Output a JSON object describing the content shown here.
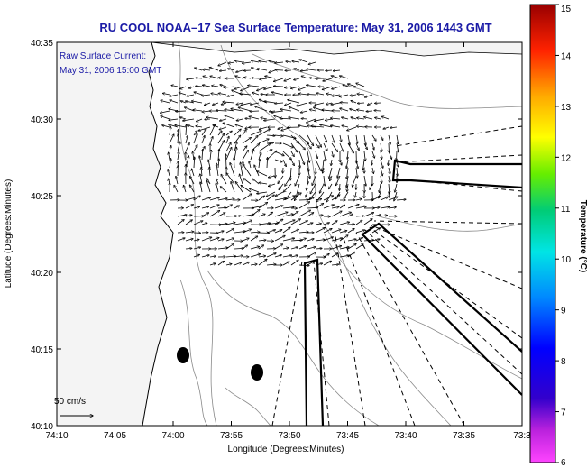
{
  "title": "RU COOL  NOAA–17  Sea Surface Temperature:  May 31, 2006 1443 GMT",
  "annotation_line1": "Raw Surface Current:",
  "annotation_line2": "May 31, 2006 15:00 GMT",
  "scale_label": "50 cm/s",
  "map": {
    "xlabel": "Longitude (Degrees:Minutes)",
    "ylabel": "Latitude (Degrees:Minutes)",
    "x_ticks": [
      "74:10",
      "74:05",
      "74:00",
      "73:55",
      "73:50",
      "73:45",
      "73:40",
      "73:35",
      "73:3"
    ],
    "y_ticks": [
      "40:35",
      "40:30",
      "40:25",
      "40:20",
      "40:15",
      "40:10"
    ],
    "land_color": "#f7f7f7",
    "ocean_color": "#ffffff",
    "marker_color": "#000000"
  },
  "colorbar": {
    "label": "Temperature (°C)",
    "ticks": [
      "15",
      "14",
      "13",
      "12",
      "11",
      "10",
      "9",
      "8",
      "7",
      "6"
    ],
    "colors": [
      "#ff44ff",
      "#8800cc",
      "#0000ff",
      "#0088ff",
      "#00e5e5",
      "#00cc66",
      "#66ee00",
      "#ffff00",
      "#ffaa00",
      "#ff2200",
      "#990000"
    ]
  }
}
